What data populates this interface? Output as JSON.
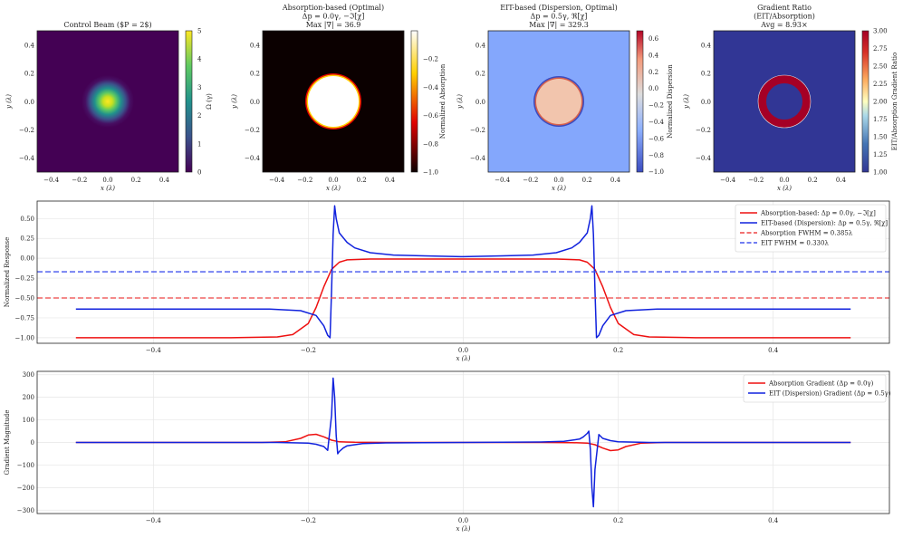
{
  "chart_data": [
    {
      "type": "heatmap",
      "title": "Control Beam ($P = 2$)",
      "xlabel": "x (λ)",
      "ylabel": "y (λ)",
      "xlim": [
        -0.5,
        0.5
      ],
      "ylim": [
        -0.5,
        0.5
      ],
      "xticks": [
        "−0.4",
        "−0.2",
        "0.0",
        "0.2",
        "0.4"
      ],
      "yticks": [
        "0.4",
        "0.2",
        "0.0",
        "−0.2",
        "−0.4"
      ],
      "colorbar": {
        "label": "Ω (γ)",
        "colormap": "viridis",
        "range": [
          0,
          5
        ],
        "ticks": [
          "5",
          "4",
          "3",
          "2",
          "1",
          "0"
        ]
      },
      "description": "Gaussian beam centered at origin, peak 5 at center, width ~0.1λ"
    },
    {
      "type": "heatmap",
      "title": "Absorption-based (Optimal)",
      "subtitle_lines": [
        "Δp = 0.0γ, −ℑ[χ]",
        "Max |∇| = 36.9"
      ],
      "xlabel": "x (λ)",
      "ylabel": "y (λ)",
      "xlim": [
        -0.5,
        0.5
      ],
      "ylim": [
        -0.5,
        0.5
      ],
      "xticks": [
        "−0.4",
        "−0.2",
        "0.0",
        "0.2",
        "0.4"
      ],
      "yticks": [
        "0.4",
        "0.2",
        "0.0",
        "−0.2",
        "−0.4"
      ],
      "colorbar": {
        "label": "Normalized Absorption",
        "colormap": "hot",
        "range": [
          -1.0,
          0.0
        ],
        "ticks": [
          "−0.2",
          "−0.4",
          "−0.6",
          "−0.8",
          "−1.0"
        ]
      },
      "description": "disk of radius ~0.19λ at value ~0 on background −1"
    },
    {
      "type": "heatmap",
      "title": "EIT-based (Dispersion, Optimal)",
      "subtitle_lines": [
        "Δp = 0.5γ, ℜ[χ]",
        "Max |∇| = 329.3"
      ],
      "xlabel": "x (λ)",
      "ylabel": "y (λ)",
      "xlim": [
        -0.5,
        0.5
      ],
      "ylim": [
        -0.5,
        0.5
      ],
      "xticks": [
        "−0.4",
        "−0.2",
        "0.0",
        "0.2",
        "0.4"
      ],
      "yticks": [
        "0.4",
        "0.2",
        "0.0",
        "−0.2",
        "−0.4"
      ],
      "colorbar": {
        "label": "Normalized Dispersion",
        "colormap": "coolwarm",
        "range": [
          -1.0,
          0.7
        ],
        "ticks": [
          "0.6",
          "0.4",
          "0.2",
          "0.0",
          "−0.2",
          "−0.4",
          "−0.6",
          "−0.8",
          "−1.0"
        ]
      },
      "description": "disk of radius ~0.17λ at value ~0.05 on background ~−0.65, thin red rim and dark blue outer ring"
    },
    {
      "type": "heatmap",
      "title": "Gradient Ratio",
      "subtitle_lines": [
        "(EIT/Absorption)",
        "Avg = 8.93×"
      ],
      "xlabel": "x (λ)",
      "ylabel": "y (λ)",
      "xlim": [
        -0.5,
        0.5
      ],
      "ylim": [
        -0.5,
        0.5
      ],
      "xticks": [
        "−0.4",
        "−0.2",
        "0.0",
        "0.2",
        "0.4"
      ],
      "yticks": [
        "0.4",
        "0.2",
        "0.0",
        "−0.2",
        "−0.4"
      ],
      "colorbar": {
        "label": "EIT/Absorption Gradient Ratio",
        "colormap": "RdYlBu_r",
        "range": [
          1.0,
          3.0
        ],
        "ticks": [
          "3.00",
          "2.75",
          "2.50",
          "2.25",
          "2.00",
          "1.75",
          "1.50",
          "1.25",
          "1.00"
        ]
      },
      "description": "annulus between r ~0.12λ and ~0.19λ at value 3 on background 1"
    },
    {
      "type": "line",
      "xlabel": "x (λ)",
      "ylabel": "Normalized Response",
      "xlim": [
        -0.55,
        0.55
      ],
      "ylim": [
        -1.07,
        0.72
      ],
      "xticks": [
        -0.4,
        -0.2,
        0.0,
        0.2,
        0.4
      ],
      "xtick_labels": [
        "−0.4",
        "−0.2",
        "0.0",
        "0.2",
        "0.4"
      ],
      "yticks": [
        0.5,
        0.25,
        0.0,
        -0.25,
        -0.5,
        -0.75,
        -1.0
      ],
      "ytick_labels": [
        "0.50",
        "0.25",
        "0.00",
        "−0.25",
        "−0.50",
        "−0.75",
        "−1.00"
      ],
      "grid": true,
      "legend_position": "top-right",
      "series": [
        {
          "name": "Absorption-based: Δp = 0.0γ, −ℑ[χ]",
          "color": "#ee1111",
          "style": "solid",
          "x": [
            -0.5,
            -0.3,
            -0.24,
            -0.22,
            -0.2,
            -0.19,
            -0.18,
            -0.17,
            -0.16,
            -0.15,
            -0.12,
            -0.08,
            0.0,
            0.08,
            0.12,
            0.15,
            0.16,
            0.17,
            0.18,
            0.19,
            0.2,
            0.22,
            0.24,
            0.3,
            0.5
          ],
          "values": [
            -1.0,
            -1.0,
            -0.99,
            -0.96,
            -0.82,
            -0.62,
            -0.36,
            -0.14,
            -0.05,
            -0.02,
            -0.01,
            -0.01,
            -0.01,
            -0.01,
            -0.01,
            -0.02,
            -0.05,
            -0.14,
            -0.36,
            -0.62,
            -0.82,
            -0.96,
            -0.99,
            -1.0,
            -1.0
          ]
        },
        {
          "name": "EIT-based (Dispersion): Δp = 0.5γ, ℜ[χ]",
          "color": "#1122dd",
          "style": "solid",
          "x": [
            -0.5,
            -0.25,
            -0.21,
            -0.19,
            -0.18,
            -0.175,
            -0.172,
            -0.17,
            -0.168,
            -0.166,
            -0.164,
            -0.16,
            -0.15,
            -0.14,
            -0.12,
            -0.09,
            -0.05,
            0.0,
            0.05,
            0.09,
            0.12,
            0.14,
            0.15,
            0.16,
            0.164,
            0.166,
            0.168,
            0.17,
            0.172,
            0.175,
            0.18,
            0.19,
            0.21,
            0.25,
            0.5
          ],
          "values": [
            -0.64,
            -0.64,
            -0.66,
            -0.72,
            -0.85,
            -0.97,
            -1.0,
            -0.4,
            0.3,
            0.66,
            0.5,
            0.32,
            0.2,
            0.13,
            0.07,
            0.04,
            0.03,
            0.02,
            0.03,
            0.04,
            0.07,
            0.13,
            0.2,
            0.32,
            0.5,
            0.66,
            0.3,
            -0.4,
            -1.0,
            -0.97,
            -0.85,
            -0.72,
            -0.66,
            -0.64,
            -0.64
          ]
        },
        {
          "name": "Absorption FWHM = 0.385λ",
          "color": "#ee4444",
          "style": "dashed",
          "hline": -0.5
        },
        {
          "name": "EIT FWHM = 0.330λ",
          "color": "#4455ee",
          "style": "dashed",
          "hline": -0.17
        }
      ]
    },
    {
      "type": "line",
      "xlabel": "x (λ)",
      "ylabel": "Gradient Magnitude",
      "xlim": [
        -0.55,
        0.55
      ],
      "ylim": [
        -315,
        315
      ],
      "xticks": [
        -0.4,
        -0.2,
        0.0,
        0.2,
        0.4
      ],
      "xtick_labels": [
        "−0.4",
        "−0.2",
        "0.0",
        "0.2",
        "0.4"
      ],
      "yticks": [
        300,
        200,
        100,
        0,
        -100,
        -200,
        -300
      ],
      "ytick_labels": [
        "300",
        "200",
        "100",
        "0",
        "−100",
        "−200",
        "−300"
      ],
      "grid": true,
      "legend_position": "top-right",
      "series": [
        {
          "name": "Absorption Gradient (Δp = 0.0γ)",
          "color": "#ee1111",
          "style": "solid",
          "x": [
            -0.5,
            -0.26,
            -0.23,
            -0.21,
            -0.2,
            -0.19,
            -0.18,
            -0.17,
            -0.16,
            -0.14,
            -0.1,
            0.0,
            0.1,
            0.14,
            0.16,
            0.17,
            0.18,
            0.19,
            0.2,
            0.21,
            0.23,
            0.26,
            0.5
          ],
          "values": [
            0,
            0,
            3,
            18,
            33,
            36,
            25,
            10,
            3,
            1,
            0,
            0,
            0,
            -1,
            -3,
            -10,
            -25,
            -36,
            -33,
            -18,
            -3,
            0,
            0
          ]
        },
        {
          "name": "EIT (Dispersion) Gradient (Δp = 0.5γ)",
          "color": "#1122dd",
          "style": "solid",
          "x": [
            -0.5,
            -0.24,
            -0.2,
            -0.19,
            -0.18,
            -0.175,
            -0.17,
            -0.168,
            -0.166,
            -0.164,
            -0.162,
            -0.16,
            -0.155,
            -0.15,
            -0.13,
            -0.1,
            0.0,
            0.1,
            0.13,
            0.15,
            0.155,
            0.16,
            0.162,
            0.164,
            0.166,
            0.168,
            0.17,
            0.175,
            0.18,
            0.19,
            0.2,
            0.24,
            0.5
          ],
          "values": [
            0,
            0,
            -3,
            -8,
            -18,
            -35,
            120,
            285,
            200,
            30,
            -50,
            -40,
            -25,
            -15,
            -5,
            -2,
            0,
            2,
            5,
            15,
            25,
            40,
            50,
            -30,
            -200,
            -285,
            -120,
            35,
            18,
            8,
            3,
            0,
            0
          ]
        }
      ]
    }
  ]
}
